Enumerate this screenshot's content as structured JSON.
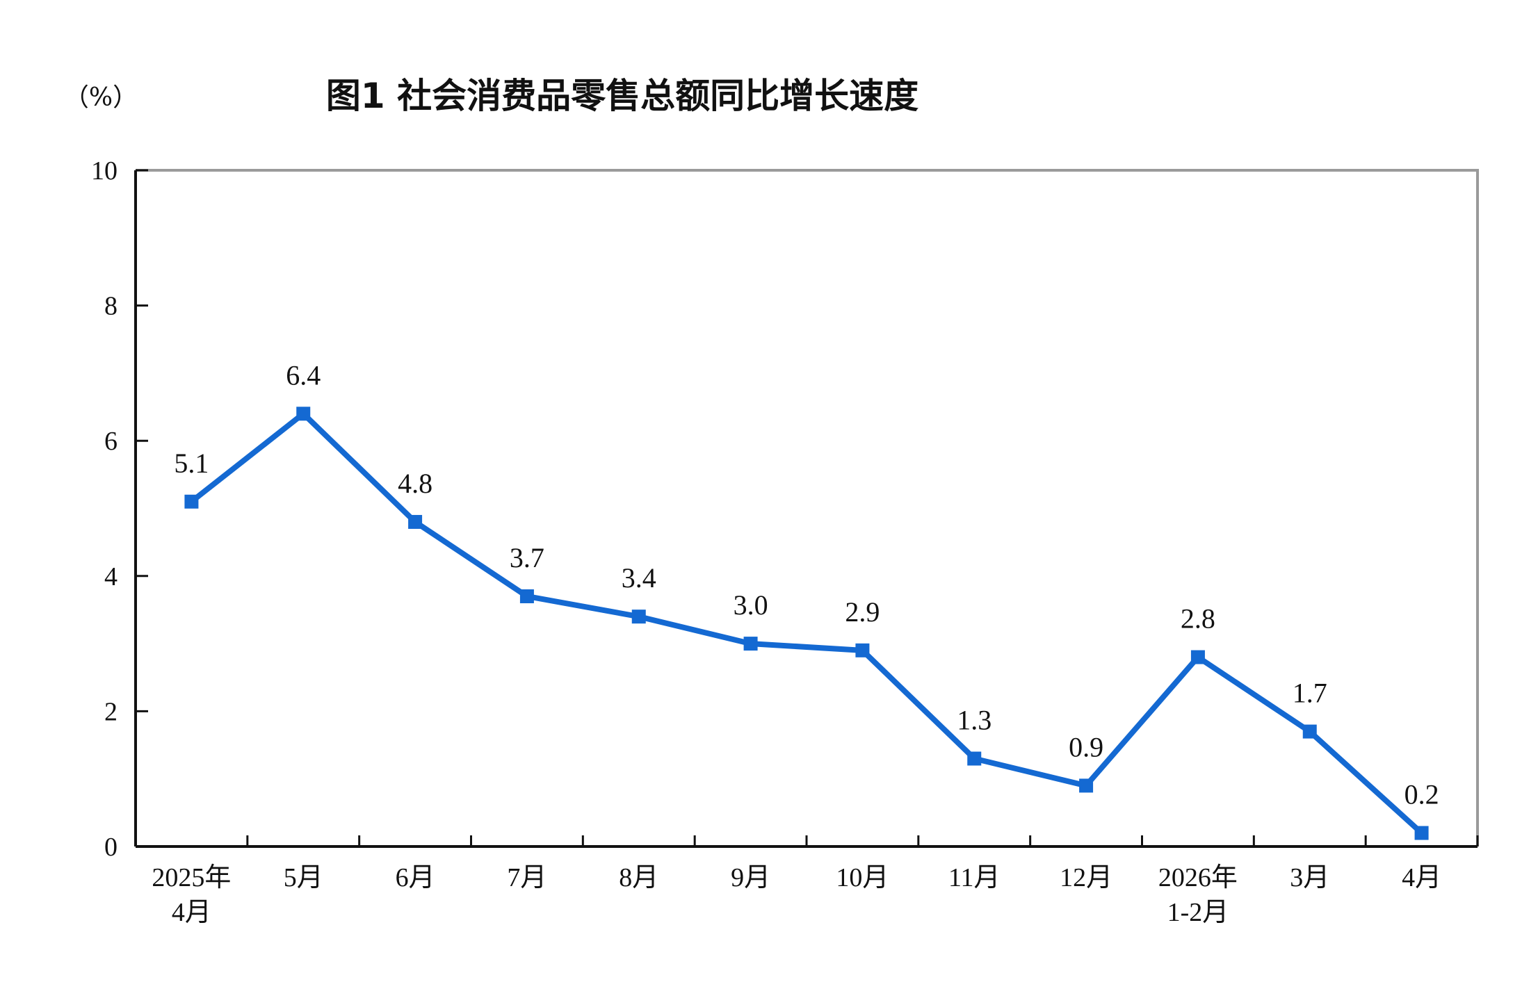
{
  "chart_data": {
    "type": "line",
    "title": "图1  社会消费品零售总额同比增长速度",
    "unit": "（%）",
    "categories": [
      [
        "2025年",
        "4月"
      ],
      [
        "5月"
      ],
      [
        "6月"
      ],
      [
        "7月"
      ],
      [
        "8月"
      ],
      [
        "9月"
      ],
      [
        "10月"
      ],
      [
        "11月"
      ],
      [
        "12月"
      ],
      [
        "2026年",
        "1-2月"
      ],
      [
        "3月"
      ],
      [
        "4月"
      ]
    ],
    "series": [
      {
        "values": [
          5.1,
          6.4,
          4.8,
          3.7,
          3.4,
          3.0,
          2.9,
          1.3,
          0.9,
          2.8,
          1.7,
          0.2
        ],
        "labels": [
          "5.1",
          "6.4",
          "4.8",
          "3.7",
          "3.4",
          "3.0",
          "2.9",
          "1.3",
          "0.9",
          "2.8",
          "1.7",
          "0.2"
        ],
        "color": "#1469d2"
      }
    ],
    "ylim": [
      0,
      10
    ],
    "yticks": [
      0,
      2,
      4,
      6,
      8,
      10
    ],
    "grid": false,
    "legend": "none",
    "marker": "square"
  }
}
